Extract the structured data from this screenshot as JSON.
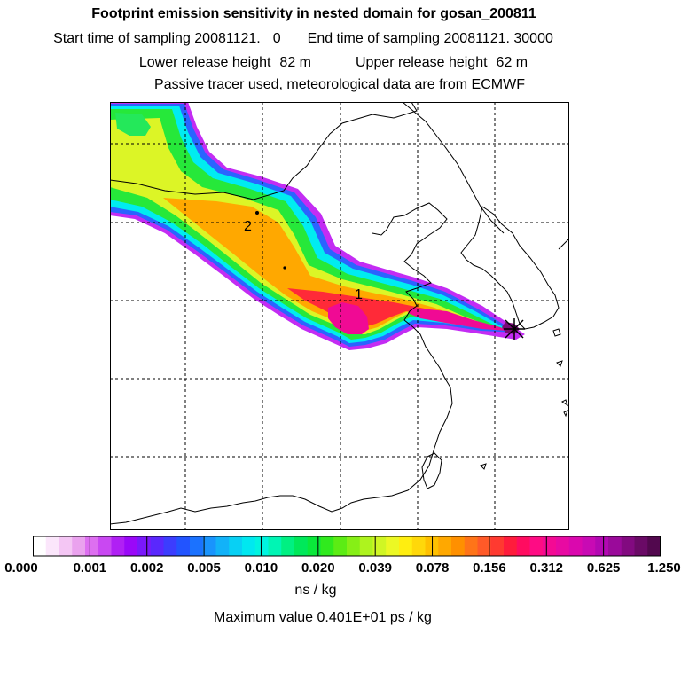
{
  "header": {
    "title": "Footprint emission sensitivity in nested domain for gosan_200811",
    "start_label": "Start time of sampling 20081121.",
    "start_value": "0",
    "end_label": "End time of sampling 20081121. 30000",
    "lower_label": "Lower release height",
    "lower_value": "82 m",
    "upper_label": "Upper release height",
    "upper_value": "62 m",
    "tracer_line": "Passive tracer used, meteorological data are from ECMWF"
  },
  "map": {
    "markers": [
      {
        "label": "1"
      },
      {
        "label": "2"
      }
    ],
    "colors": {
      "coast": "#000000",
      "grid": "#000000",
      "station": "#000000"
    }
  },
  "colorbar": {
    "labels": [
      "0.000",
      "0.001",
      "0.002",
      "0.005",
      "0.010",
      "0.020",
      "0.039",
      "0.078",
      "0.156",
      "0.312",
      "0.625",
      "1.250"
    ],
    "colors": [
      "#ffffff",
      "#fbe6fb",
      "#f4c6f4",
      "#eaa2ee",
      "#dd6ff0",
      "#c948f2",
      "#b020f4",
      "#9a08f8",
      "#7a18fb",
      "#5a28fd",
      "#3c3dfe",
      "#2254ff",
      "#1b72ff",
      "#1994fd",
      "#12b2f8",
      "#08d0f4",
      "#00e8f0",
      "#00f4e0",
      "#00f5b4",
      "#00f082",
      "#00e85a",
      "#0ae83a",
      "#30ea1e",
      "#5cec14",
      "#86ef16",
      "#aef31e",
      "#d0f624",
      "#ecf824",
      "#ffee10",
      "#ffd80a",
      "#ffc000",
      "#ffa800",
      "#ff9000",
      "#ff7418",
      "#ff5a28",
      "#ff3a30",
      "#ff1c3c",
      "#ff0c60",
      "#fe0c84",
      "#f40a94",
      "#e80aa2",
      "#da08ae",
      "#c80ab4",
      "#b208b2",
      "#9a0a9a",
      "#820a80",
      "#6a0a66",
      "#52084e"
    ],
    "unit": "ns / kg",
    "max_label": "Maximum value  0.401E+01 ps / kg"
  }
}
